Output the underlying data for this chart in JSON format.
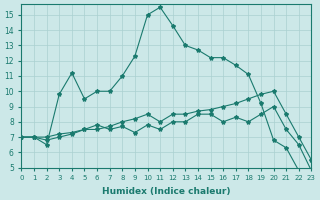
{
  "xlabel": "Humidex (Indice chaleur)",
  "background_color": "#cce8e8",
  "grid_color": "#aad0d0",
  "line_color": "#1a7a6e",
  "xlim": [
    0,
    23
  ],
  "ylim": [
    5,
    15.7
  ],
  "yticks": [
    5,
    6,
    7,
    8,
    9,
    10,
    11,
    12,
    13,
    14,
    15
  ],
  "xticks": [
    0,
    1,
    2,
    3,
    4,
    5,
    6,
    7,
    8,
    9,
    10,
    11,
    12,
    13,
    14,
    15,
    16,
    17,
    18,
    19,
    20,
    21,
    22,
    23
  ],
  "series1_x": [
    0,
    1,
    2,
    3,
    4,
    5,
    6,
    7,
    8,
    9,
    10,
    11,
    12,
    13,
    14,
    15,
    16,
    17,
    18,
    19,
    20,
    21,
    22,
    23
  ],
  "series1_y": [
    7.0,
    7.0,
    6.5,
    9.8,
    11.2,
    9.5,
    10.0,
    10.0,
    11.0,
    12.3,
    15.0,
    15.5,
    14.3,
    13.0,
    12.7,
    12.2,
    12.2,
    11.7,
    11.1,
    9.2,
    6.8,
    6.3,
    4.8,
    4.7
  ],
  "series2_x": [
    0,
    1,
    2,
    3,
    4,
    5,
    6,
    7,
    8,
    9,
    10,
    11,
    12,
    13,
    14,
    15,
    16,
    17,
    18,
    19,
    20,
    21,
    22,
    23
  ],
  "series2_y": [
    7.0,
    7.0,
    7.0,
    7.2,
    7.3,
    7.5,
    7.5,
    7.7,
    8.0,
    8.2,
    8.5,
    8.0,
    8.5,
    8.5,
    8.7,
    8.8,
    9.0,
    9.2,
    9.5,
    9.8,
    10.0,
    8.5,
    7.0,
    5.5
  ],
  "series3_x": [
    0,
    1,
    2,
    3,
    4,
    5,
    6,
    7,
    8,
    9,
    10,
    11,
    12,
    13,
    14,
    15,
    16,
    17,
    18,
    19,
    20,
    21,
    22,
    23
  ],
  "series3_y": [
    7.0,
    7.0,
    6.8,
    7.0,
    7.2,
    7.5,
    7.8,
    7.5,
    7.7,
    7.3,
    7.8,
    7.5,
    8.0,
    8.0,
    8.5,
    8.5,
    8.0,
    8.3,
    8.0,
    8.5,
    9.0,
    7.5,
    6.5,
    4.8
  ]
}
